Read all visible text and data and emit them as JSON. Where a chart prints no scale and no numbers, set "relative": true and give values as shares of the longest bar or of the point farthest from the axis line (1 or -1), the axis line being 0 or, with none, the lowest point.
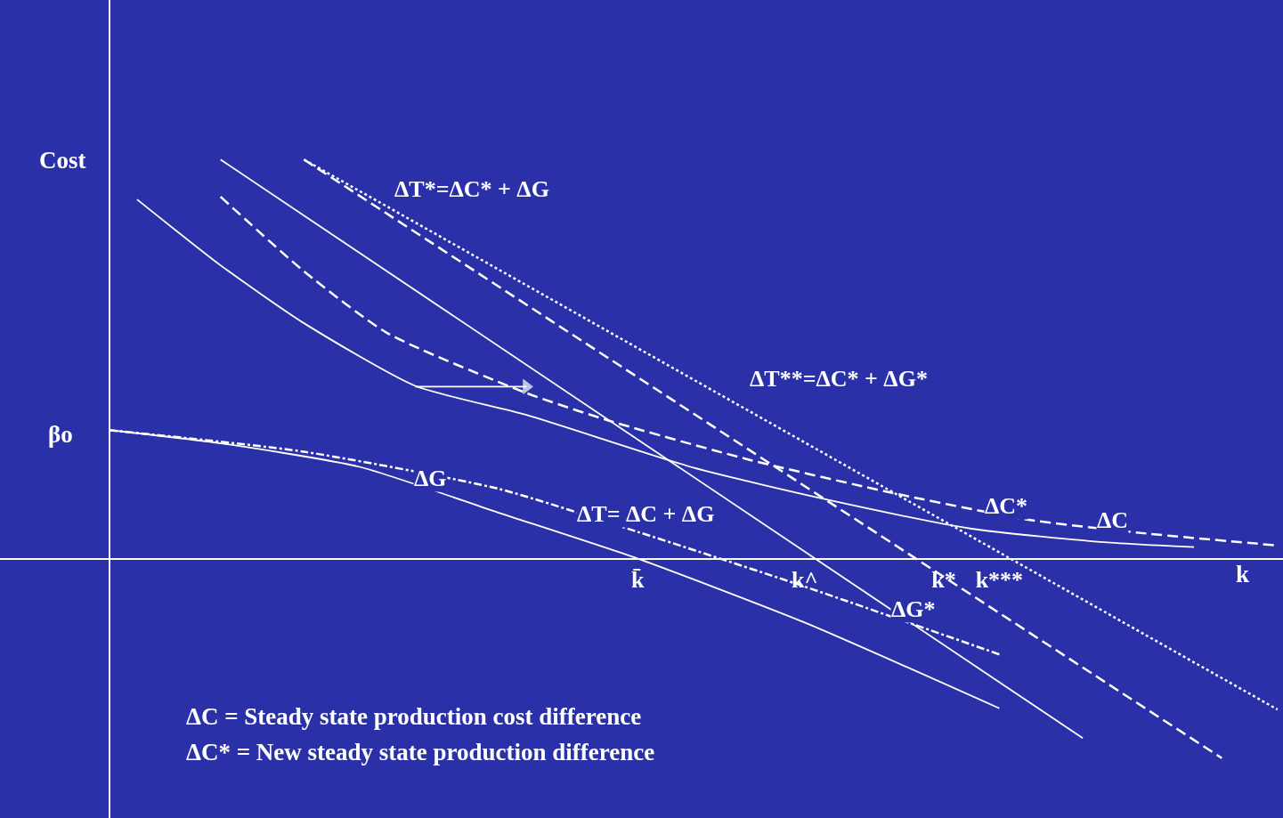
{
  "chart_data": {
    "type": "line",
    "relative": true,
    "xlabel": "k",
    "ylabel": "Cost",
    "categories": [
      null,
      null,
      null,
      null,
      null,
      null,
      null,
      null,
      null,
      null,
      null,
      null,
      null,
      null,
      null,
      null,
      null,
      null,
      null,
      "k̄",
      null,
      null,
      null,
      null,
      null,
      "k^",
      null,
      null,
      null,
      null,
      "k*",
      null,
      "k***",
      null,
      null,
      null,
      null,
      null,
      null,
      null,
      null,
      null,
      null
    ],
    "grid": false,
    "legend": false,
    "tick_labels": "x",
    "series": [
      {
        "name": "ΔC",
        "color": "#ffffff",
        "line_style": "solid",
        "values": [
          null,
          0.9,
          null,
          null,
          0.735,
          null,
          null,
          0.59,
          null,
          null,
          null,
          0.433,
          null,
          null,
          null,
          0.36,
          null,
          null,
          null,
          null,
          null,
          0.228,
          null,
          null,
          null,
          null,
          0.145,
          null,
          null,
          null,
          null,
          0.075,
          null,
          null,
          null,
          null,
          0.04,
          null,
          null,
          0.029,
          null,
          null,
          null
        ]
      },
      {
        "name": "ΔC*",
        "color": "#ffffff",
        "line_style": "dashed",
        "values": [
          null,
          null,
          null,
          null,
          0.907,
          null,
          null,
          0.72,
          null,
          null,
          0.565,
          null,
          null,
          null,
          null,
          0.415,
          null,
          null,
          0.345,
          null,
          null,
          null,
          null,
          0.248,
          null,
          null,
          null,
          null,
          0.167,
          null,
          null,
          null,
          null,
          0.098,
          null,
          null,
          null,
          0.065,
          null,
          null,
          null,
          null,
          0.033
        ]
      },
      {
        "name": "ΔG*",
        "color": "#ffffff",
        "line_style": "solid",
        "values": [
          null,
          null,
          null,
          null,
          1.0,
          null,
          null,
          null,
          null,
          null,
          null,
          null,
          null,
          null,
          null,
          null,
          null,
          null,
          null,
          null,
          null,
          null,
          null,
          null,
          null,
          null,
          null,
          null,
          null,
          null,
          null,
          null,
          null,
          null,
          null,
          -0.45,
          null,
          null,
          null,
          null,
          null,
          null,
          null
        ]
      },
      {
        "name": "ΔT*=ΔC* + ΔG",
        "color": "#ffffff",
        "line_style": "dashed",
        "values": [
          null,
          null,
          null,
          null,
          null,
          null,
          null,
          1.0,
          null,
          null,
          null,
          null,
          null,
          null,
          null,
          null,
          null,
          null,
          null,
          null,
          null,
          null,
          null,
          null,
          null,
          null,
          null,
          null,
          null,
          null,
          null,
          null,
          null,
          null,
          null,
          null,
          null,
          null,
          null,
          null,
          -0.5,
          null,
          null
        ]
      },
      {
        "name": "ΔT**=ΔC* + ΔG*",
        "color": "#ffffff",
        "line_style": "dotted",
        "values": [
          null,
          null,
          null,
          null,
          null,
          null,
          null,
          1.0,
          null,
          null,
          null,
          null,
          null,
          null,
          null,
          null,
          null,
          null,
          null,
          null,
          null,
          null,
          null,
          null,
          null,
          null,
          null,
          null,
          null,
          null,
          null,
          null,
          null,
          null,
          null,
          null,
          null,
          null,
          null,
          null,
          null,
          null,
          -0.378
        ]
      },
      {
        "name": "ΔG",
        "color": "#ffffff",
        "line_style": "solid",
        "values": [
          0.322,
          null,
          null,
          null,
          0.289,
          null,
          null,
          null,
          null,
          0.23,
          null,
          null,
          null,
          null,
          0.115,
          null,
          null,
          null,
          null,
          0,
          null,
          null,
          null,
          null,
          null,
          -0.16,
          null,
          null,
          null,
          null,
          null,
          null,
          -0.375,
          null,
          null,
          null,
          null,
          null,
          null,
          null,
          null,
          null,
          null
        ]
      },
      {
        "name": "ΔT= ΔC + ΔG",
        "color": "#ffffff",
        "line_style": "dashdot",
        "values": [
          0.322,
          null,
          null,
          null,
          null,
          null,
          null,
          0.268,
          null,
          null,
          null,
          null,
          null,
          null,
          0.175,
          null,
          null,
          null,
          null,
          0.067,
          null,
          null,
          null,
          null,
          null,
          -0.07,
          null,
          null,
          null,
          null,
          null,
          null,
          -0.24,
          null,
          null,
          null,
          null,
          null,
          null,
          null,
          null,
          null,
          null
        ]
      },
      {
        "color": "#ffffff",
        "line_style": "solid",
        "marker": "triangle",
        "values": [
          null,
          null,
          null,
          null,
          null,
          null,
          null,
          null,
          null,
          null,
          null,
          0.431,
          null,
          null,
          null,
          0.431,
          null,
          null,
          null,
          null,
          null,
          null,
          null,
          null,
          null,
          null,
          null,
          null,
          null,
          null,
          null,
          null,
          null,
          null,
          null,
          null,
          null,
          null,
          null,
          null,
          null,
          null,
          null
        ]
      }
    ],
    "annotations": [
      "βo",
      "ΔC = Steady state production cost difference",
      "ΔC* = New steady state production difference"
    ]
  }
}
